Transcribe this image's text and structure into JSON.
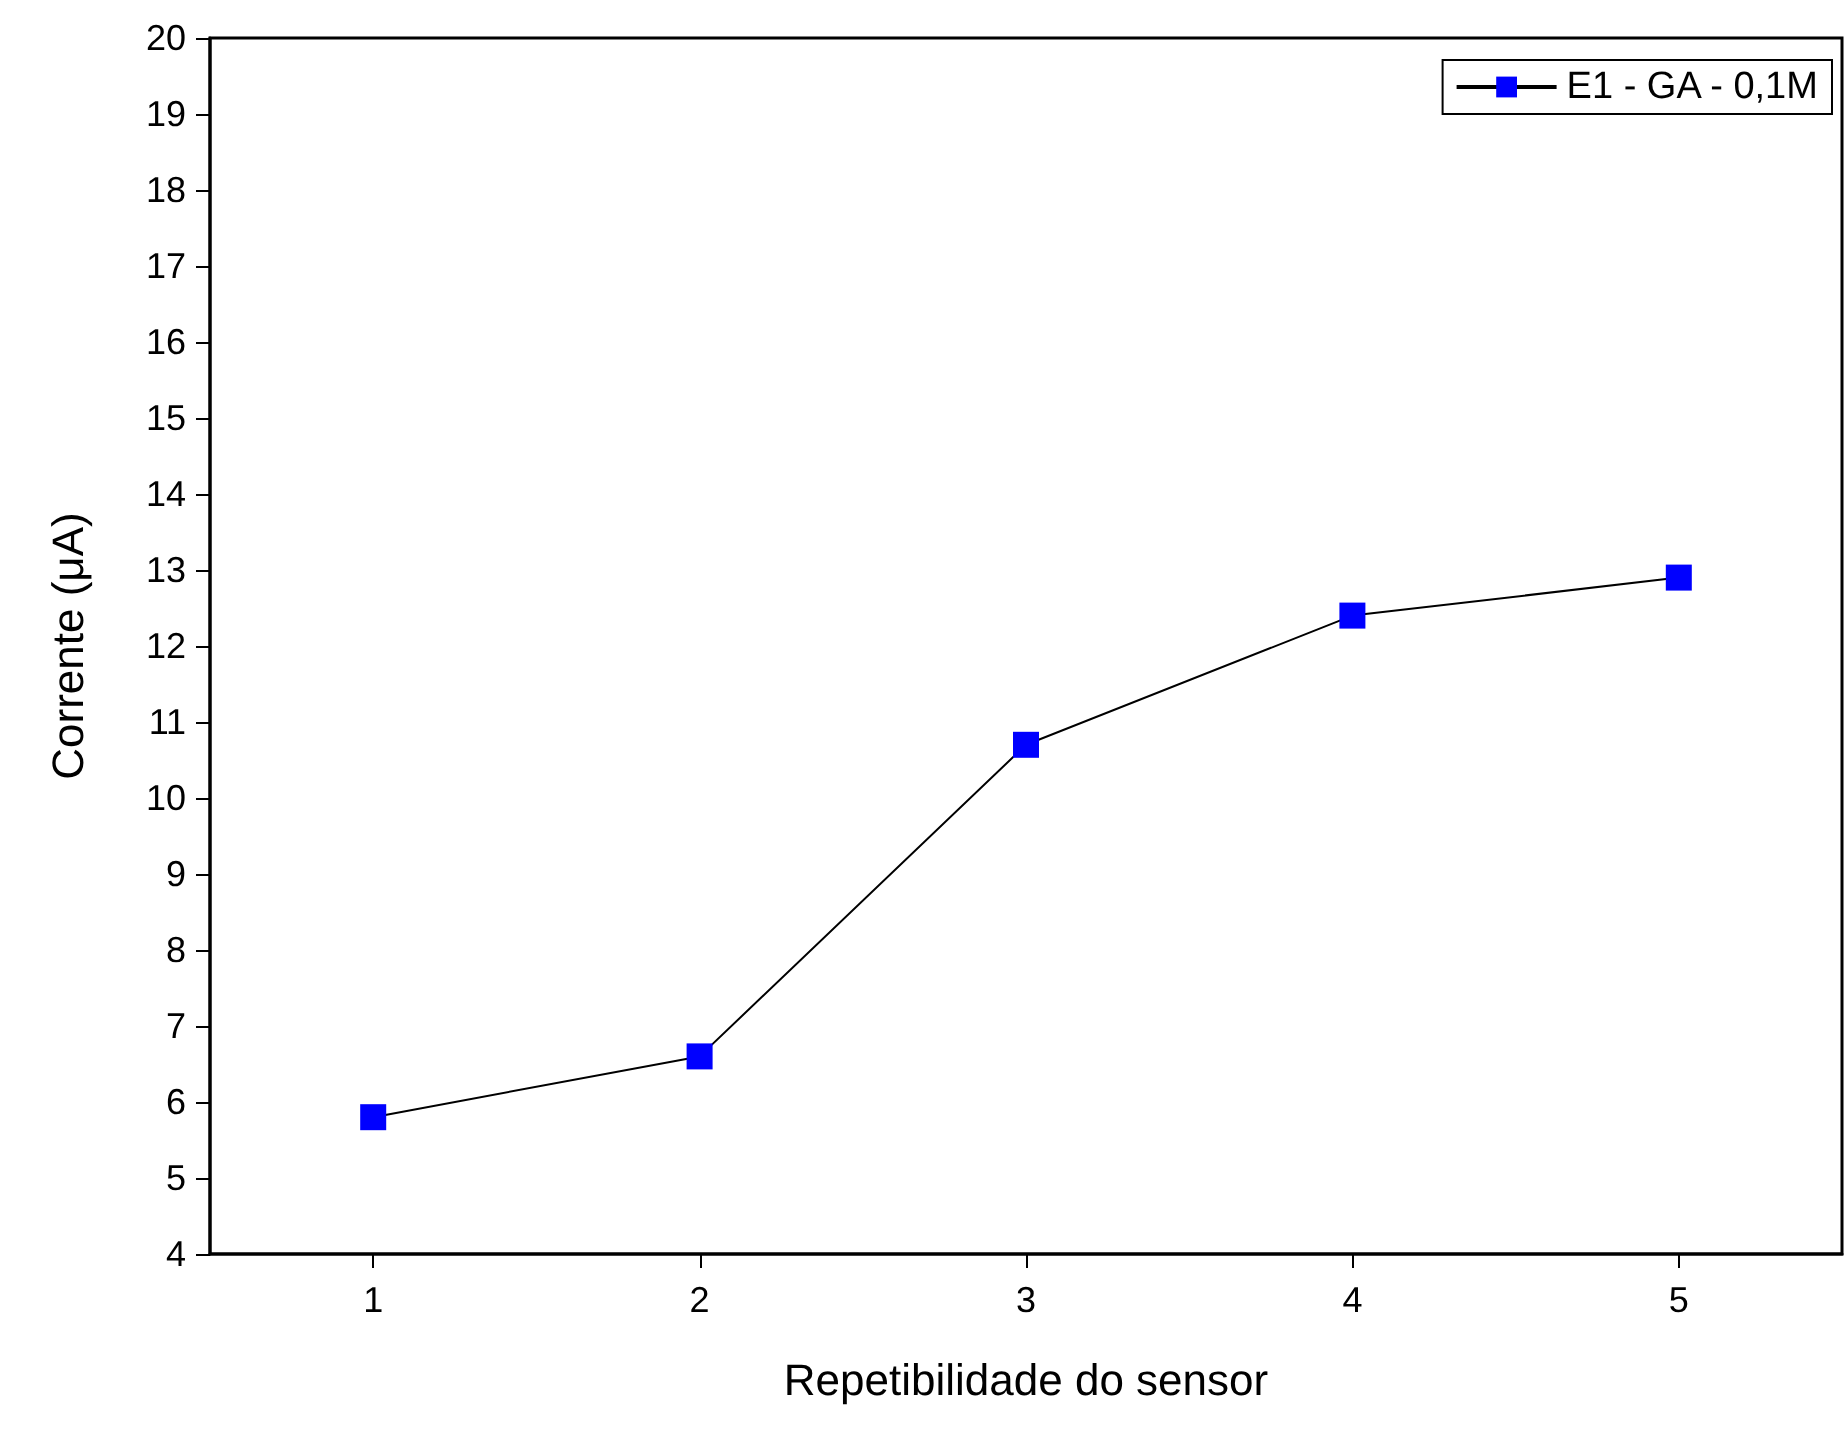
{
  "chart_data": {
    "type": "line",
    "xlabel": "Repetibilidade do sensor",
    "ylabel": "Corrente (μA)",
    "x": [
      1,
      2,
      3,
      4,
      5
    ],
    "series": [
      {
        "name": "E1 - GA - 0,1M",
        "color": "#0000ff",
        "values": [
          5.8,
          6.6,
          10.7,
          12.4,
          12.9
        ]
      }
    ],
    "xlim": [
      0.5,
      5.5
    ],
    "xticks": [
      1,
      2,
      3,
      4,
      5
    ],
    "ylim": [
      4,
      20
    ],
    "yticks": [
      4,
      5,
      6,
      7,
      8,
      9,
      10,
      11,
      12,
      13,
      14,
      15,
      16,
      17,
      18,
      19,
      20
    ],
    "marker": "square",
    "line_style": "solid",
    "legend": "top right",
    "grid": false
  }
}
